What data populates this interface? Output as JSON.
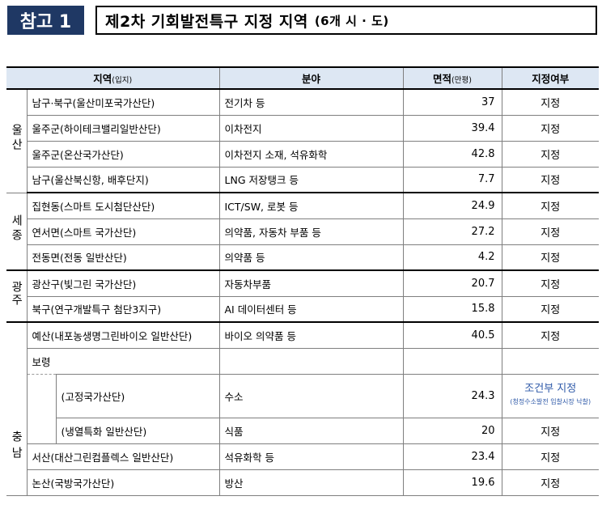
{
  "header": {
    "badge": "참고 1",
    "title": "제2차 기회발전특구 지정 지역",
    "title_sub": "(6개 시 · 도)"
  },
  "table": {
    "columns": {
      "region": "지역",
      "region_small": "(입지)",
      "field": "분야",
      "area": "면적",
      "area_small": "(만평)",
      "status": "지정여부"
    },
    "groups": {
      "ulsan": "울산",
      "sejong": "세종",
      "gwangju": "광주",
      "chungnam": "충남"
    },
    "rows": [
      {
        "name": "남구·북구(울산미포국가산단)",
        "field": "전기차 등",
        "area": "37",
        "status": "지정"
      },
      {
        "name": "울주군(하이테크밸리일반산단)",
        "field": "이차전지",
        "area": "39.4",
        "status": "지정"
      },
      {
        "name": "울주군(온산국가산단)",
        "field": "이차전지 소재, 석유화학",
        "area": "42.8",
        "status": "지정"
      },
      {
        "name": "남구(울산북신항, 배후단지)",
        "field": "LNG 저장탱크 등",
        "area": "7.7",
        "status": "지정"
      },
      {
        "name": "집현동(스마트 도시첨단산단)",
        "field": "ICT/SW, 로봇 등",
        "area": "24.9",
        "status": "지정"
      },
      {
        "name": "연서면(스마트 국가산단)",
        "field": "의약품, 자동차 부품 등",
        "area": "27.2",
        "status": "지정"
      },
      {
        "name": "전동면(전동 일반산단)",
        "field": "의약품 등",
        "area": "4.2",
        "status": "지정"
      },
      {
        "name": "광산구(빛그린 국가산단)",
        "field": "자동차부품",
        "area": "20.7",
        "status": "지정"
      },
      {
        "name": "북구(연구개발특구 첨단3지구)",
        "field": "AI 데이터센터 등",
        "area": "15.8",
        "status": "지정"
      },
      {
        "name": "예산(내포농생명그린바이오 일반산단)",
        "field": "바이오 의약품 등",
        "area": "40.5",
        "status": "지정"
      },
      {
        "name": "보령",
        "field": "",
        "area": "",
        "status": ""
      },
      {
        "name": "(고정국가산단)",
        "field": "수소",
        "area": "24.3",
        "status": "조건부 지정",
        "status_note": "(청정수소발전 입찰시장 낙찰)"
      },
      {
        "name": "(냉열특화 일반산단)",
        "field": "식품",
        "area": "20",
        "status": "지정"
      },
      {
        "name": "서산(대산그린컴플렉스 일반산단)",
        "field": "석유화학 등",
        "area": "23.4",
        "status": "지정"
      },
      {
        "name": "논산(국방국가산단)",
        "field": "방산",
        "area": "19.6",
        "status": "지정"
      }
    ]
  },
  "colors": {
    "badge_bg": "#1f3864",
    "header_bg": "#dde7f3",
    "conditional_text": "#2e59a8"
  }
}
